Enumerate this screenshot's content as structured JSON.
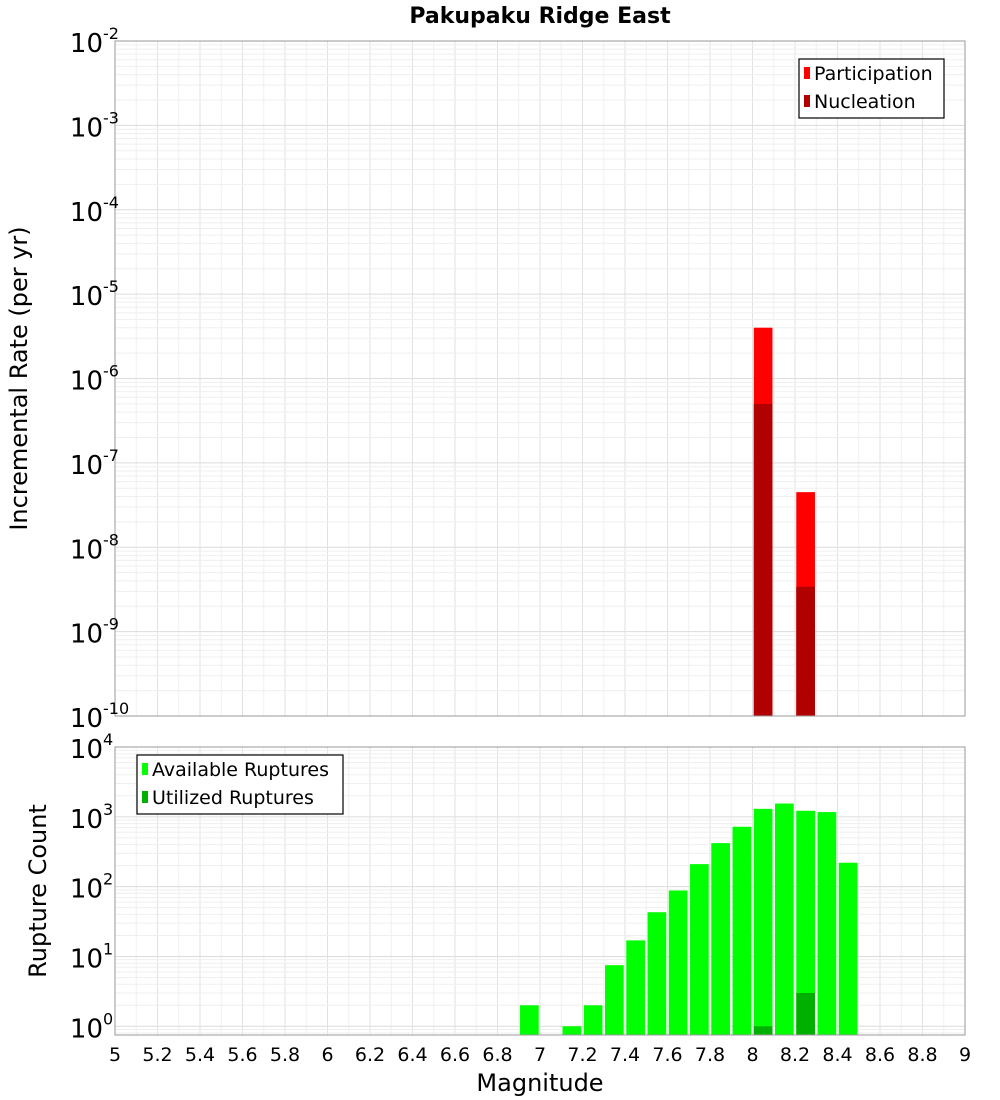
{
  "chart_data": [
    {
      "type": "bar",
      "title": "Pakupaku Ridge East",
      "xlabel": "",
      "ylabel": "Incremental Rate (per yr)",
      "yscale": "log",
      "xlim": [
        5,
        9
      ],
      "ylim": [
        1e-10,
        0.01
      ],
      "y_tick_exponents": [
        "-10",
        "-9",
        "-8",
        "-7",
        "-6",
        "-5",
        "-4",
        "-3",
        "-2"
      ],
      "legend": "top-right",
      "bin_width": 0.1,
      "series": [
        {
          "name": "Participation",
          "color": "#ff0000",
          "x": [
            8.05,
            8.25
          ],
          "values": [
            4e-06,
            4.5e-08
          ]
        },
        {
          "name": "Nucleation",
          "color": "#b00000",
          "x": [
            8.05,
            8.25
          ],
          "values": [
            5e-07,
            3.4e-09
          ]
        }
      ]
    },
    {
      "type": "bar",
      "title": "",
      "xlabel": "Magnitude",
      "ylabel": "Rupture Count",
      "yscale": "log",
      "xlim": [
        5,
        9
      ],
      "ylim": [
        0.75,
        10000
      ],
      "y_tick_exponents": [
        "0",
        "1",
        "2",
        "3",
        "4"
      ],
      "x_tick_labels": [
        "5",
        "5.2",
        "5.4",
        "5.6",
        "5.8",
        "6",
        "6.2",
        "6.4",
        "6.6",
        "6.8",
        "7",
        "7.2",
        "7.4",
        "7.6",
        "7.8",
        "8",
        "8.2",
        "8.4",
        "8.6",
        "8.8",
        "9"
      ],
      "legend": "top-left",
      "bin_width": 0.1,
      "series": [
        {
          "name": "Available Ruptures",
          "color": "#00ff00",
          "x": [
            6.95,
            7.15,
            7.25,
            7.35,
            7.45,
            7.55,
            7.65,
            7.75,
            7.85,
            7.95,
            8.05,
            8.15,
            8.25,
            8.35,
            8.45
          ],
          "values": [
            2,
            1,
            2,
            7.5,
            17,
            43,
            88,
            210,
            420,
            720,
            1300,
            1550,
            1220,
            1170,
            220
          ]
        },
        {
          "name": "Utilized Ruptures",
          "color": "#00b000",
          "x": [
            8.05,
            8.25
          ],
          "values": [
            1,
            3
          ]
        }
      ]
    }
  ]
}
